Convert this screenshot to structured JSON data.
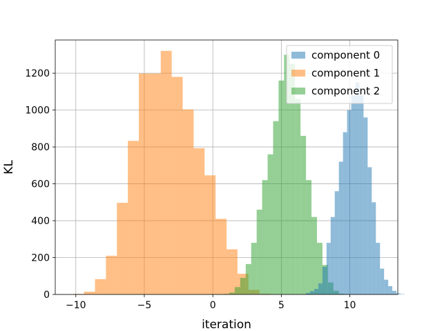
{
  "chart_data": {
    "type": "histogram",
    "xlabel": "iteration",
    "ylabel": "KL",
    "xlim": [
      -11.5,
      13.5
    ],
    "ylim": [
      0,
      1380
    ],
    "xticks": [
      -10,
      -5,
      0,
      5,
      10
    ],
    "yticks": [
      0,
      200,
      400,
      600,
      800,
      1000,
      1200
    ],
    "grid": true,
    "legend_position": "upper right",
    "series": [
      {
        "name": "component 1",
        "color": "#ff7f0e",
        "alpha": 0.5,
        "bin_start": -10.2,
        "bin_width": 0.8,
        "counts": [
          3,
          15,
          83,
          210,
          497,
          833,
          1198,
          1198,
          1321,
          1180,
          1003,
          793,
          646,
          410,
          245,
          112,
          25,
          4
        ]
      },
      {
        "name": "component 2",
        "color": "#2ca02c",
        "alpha": 0.5,
        "bin_start": 0.8,
        "bin_width": 0.4,
        "counts": [
          3,
          10,
          40,
          90,
          165,
          280,
          460,
          620,
          760,
          940,
          1160,
          1300,
          1250,
          1060,
          860,
          620,
          420,
          280,
          160,
          65,
          20,
          4
        ]
      },
      {
        "name": "component 0",
        "color": "#1f77b4",
        "alpha": 0.5,
        "bin_start": 6.8,
        "bin_width": 0.3,
        "counts": [
          8,
          18,
          30,
          60,
          150,
          280,
          420,
          560,
          720,
          880,
          1000,
          1080,
          1150,
          1080,
          960,
          690,
          500,
          280,
          140,
          80,
          45,
          20,
          6,
          2
        ]
      }
    ],
    "legend": [
      "component 0",
      "component 1",
      "component 2"
    ]
  }
}
